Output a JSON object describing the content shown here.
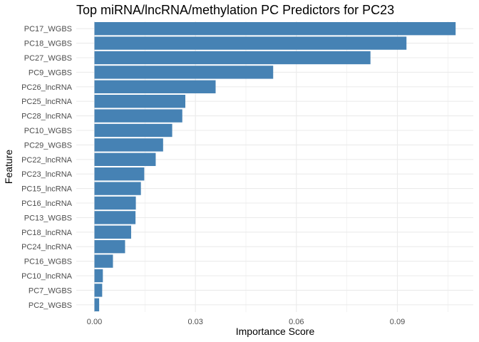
{
  "chart_data": {
    "type": "bar",
    "orientation": "horizontal",
    "title": "Top miRNA/lncRNA/methylation PC Predictors for PC23",
    "xlabel": "Importance Score",
    "ylabel": "Feature",
    "xlim": [
      0,
      0.1085
    ],
    "xticks": [
      0.0,
      0.03,
      0.06,
      0.09
    ],
    "xtick_labels": [
      "0.00",
      "0.03",
      "0.06",
      "0.09"
    ],
    "grid": true,
    "bar_color": "#4682B4",
    "categories": [
      "PC17_WGBS",
      "PC18_WGBS",
      "PC27_WGBS",
      "PC9_WGBS",
      "PC26_lncRNA",
      "PC25_lncRNA",
      "PC28_lncRNA",
      "PC10_WGBS",
      "PC29_WGBS",
      "PC22_lncRNA",
      "PC23_lncRNA",
      "PC15_lncRNA",
      "PC16_lncRNA",
      "PC13_WGBS",
      "PC18_lncRNA",
      "PC24_lncRNA",
      "PC16_WGBS",
      "PC10_lncRNA",
      "PC7_WGBS",
      "PC2_WGBS"
    ],
    "values": [
      0.1073,
      0.0927,
      0.082,
      0.0531,
      0.036,
      0.027,
      0.0261,
      0.0231,
      0.0204,
      0.0182,
      0.0148,
      0.0138,
      0.0123,
      0.0122,
      0.0109,
      0.0091,
      0.0055,
      0.0025,
      0.0023,
      0.0014
    ]
  }
}
